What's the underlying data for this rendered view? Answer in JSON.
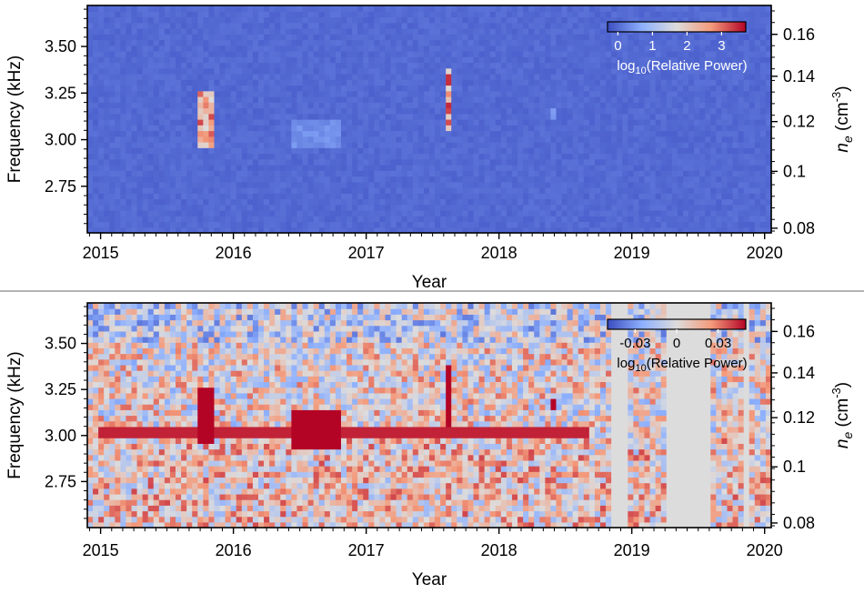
{
  "chart_data": [
    {
      "type": "heatmap",
      "xlabel": "Year",
      "ylabel": "Frequency (kHz)",
      "ylabel_right": "n_e (cm^-3)",
      "x_ticks": [
        "2015",
        "2016",
        "2017",
        "2018",
        "2019",
        "2020"
      ],
      "xlim": [
        2014.9,
        2020.05
      ],
      "ylim": [
        2.5,
        3.72
      ],
      "y_ticks": [
        "2.75",
        "3.00",
        "3.25",
        "3.50"
      ],
      "y_right_ticks": [
        "0.08",
        "0.1",
        "0.12",
        "0.14",
        "0.16"
      ],
      "colorbar": {
        "label": "log10(Relative Power)",
        "ticks": [
          "0",
          "1",
          "2",
          "3"
        ],
        "range": [
          -0.3,
          3.7
        ],
        "colormap": "coolwarm"
      },
      "background_value": 0.0,
      "features": [
        {
          "start_year": 2015.72,
          "end_year": 2015.86,
          "freq_low": 2.97,
          "freq_high": 3.25,
          "peak_value": 3.3
        },
        {
          "start_year": 2017.58,
          "end_year": 2017.66,
          "freq_low": 3.05,
          "freq_high": 3.38,
          "peak_value": 3.5
        },
        {
          "start_year": 2016.45,
          "end_year": 2016.8,
          "freq_low": 2.97,
          "freq_high": 3.1,
          "peak_value": 0.5
        },
        {
          "start_year": 2018.4,
          "end_year": 2018.42,
          "freq_low": 3.12,
          "freq_high": 3.18,
          "peak_value": 0.9
        }
      ]
    },
    {
      "type": "heatmap",
      "xlabel": "Year",
      "ylabel": "Frequency (kHz)",
      "ylabel_right": "n_e (cm^-3)",
      "x_ticks": [
        "2015",
        "2016",
        "2017",
        "2018",
        "2019",
        "2020"
      ],
      "xlim": [
        2014.9,
        2020.05
      ],
      "ylim": [
        2.5,
        3.72
      ],
      "y_ticks": [
        "2.75",
        "3.00",
        "3.25",
        "3.50"
      ],
      "y_right_ticks": [
        "0.08",
        "0.1",
        "0.12",
        "0.14",
        "0.16"
      ],
      "colorbar": {
        "label": "log10(Relative Power)",
        "ticks": [
          "-0.03",
          "0",
          "0.03"
        ],
        "range": [
          -0.05,
          0.05
        ],
        "colormap": "coolwarm"
      },
      "features": [
        {
          "start_year": 2015.72,
          "end_year": 2015.86,
          "freq_low": 2.97,
          "freq_high": 3.25,
          "peak_value": 0.05
        },
        {
          "start_year": 2016.45,
          "end_year": 2016.8,
          "freq_low": 2.92,
          "freq_high": 3.15,
          "peak_value": 0.05
        },
        {
          "start_year": 2017.58,
          "end_year": 2017.66,
          "freq_low": 3.05,
          "freq_high": 3.38,
          "peak_value": 0.05
        },
        {
          "start_year": 2015.0,
          "end_year": 2018.7,
          "freq_low": 2.98,
          "freq_high": 3.04,
          "peak_value": 0.045
        },
        {
          "start_year": 2018.38,
          "end_year": 2018.44,
          "freq_low": 3.15,
          "freq_high": 3.2,
          "peak_value": 0.05
        }
      ],
      "data_gaps": [
        {
          "start_year": 2018.83,
          "end_year": 2018.97
        },
        {
          "start_year": 2019.28,
          "end_year": 2019.6
        },
        {
          "start_year": 2019.86,
          "end_year": 2019.9
        }
      ]
    }
  ]
}
